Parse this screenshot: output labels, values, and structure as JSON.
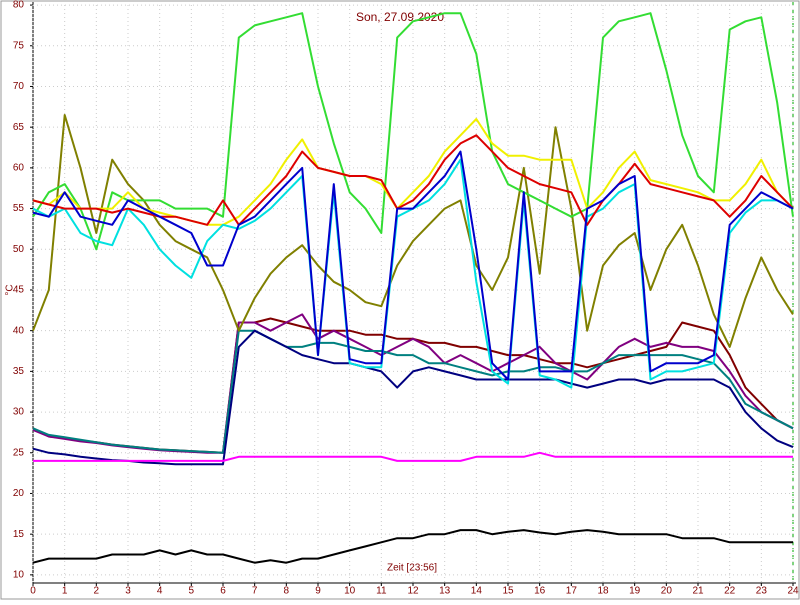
{
  "chart_data": {
    "type": "line",
    "title": "Son, 27.09.2020",
    "ylabel": "°C",
    "annotation": "Zeit [23:56]",
    "x": [
      0,
      0.5,
      1,
      1.5,
      2,
      2.5,
      3,
      3.5,
      4,
      4.5,
      5,
      5.5,
      6,
      6.5,
      7,
      7.5,
      8,
      8.5,
      9,
      9.5,
      10,
      10.5,
      11,
      11.5,
      12,
      12.5,
      13,
      13.5,
      14,
      14.5,
      15,
      15.5,
      16,
      16.5,
      17,
      17.5,
      18,
      18.5,
      19,
      19.5,
      20,
      20.5,
      21,
      21.5,
      22,
      22.5,
      23,
      23.5,
      24
    ],
    "xlim": [
      0,
      24
    ],
    "xticks": [
      0,
      1,
      2,
      3,
      4,
      5,
      6,
      7,
      8,
      9,
      10,
      11,
      12,
      13,
      14,
      15,
      16,
      17,
      18,
      19,
      20,
      21,
      22,
      23,
      24
    ],
    "ylim": [
      9,
      80.5
    ],
    "yticks": [
      10,
      15,
      20,
      25,
      30,
      35,
      40,
      45,
      50,
      55,
      60,
      65,
      70,
      75,
      80
    ],
    "grid": true,
    "series": [
      {
        "color": "#800000",
        "values": [
          28,
          27,
          26.8,
          26.5,
          26.3,
          26,
          25.8,
          25.6,
          25.4,
          25.3,
          25.2,
          25.1,
          25,
          41,
          41,
          41.5,
          41,
          40.5,
          40,
          40,
          40,
          39.5,
          39.5,
          39,
          39,
          38.5,
          38.5,
          38,
          38,
          37.5,
          37,
          37,
          36.5,
          36,
          36,
          35.5,
          36,
          36.5,
          37,
          37.5,
          38,
          41,
          40.5,
          40,
          37,
          33,
          31,
          29,
          28
        ]
      },
      {
        "color": "#800080",
        "values": [
          27.8,
          27,
          26.7,
          26.4,
          26.2,
          25.9,
          25.7,
          25.5,
          25.3,
          25.2,
          25.1,
          25,
          25,
          41,
          41,
          40,
          41,
          42,
          39,
          40,
          39,
          38,
          37,
          38,
          39,
          38,
          36,
          37,
          36,
          35,
          36,
          37,
          38,
          36,
          35,
          34,
          36,
          38,
          39,
          38,
          38.5,
          38,
          38,
          37.5,
          35,
          32,
          30,
          29,
          28
        ]
      },
      {
        "color": "#008080",
        "values": [
          28,
          27.2,
          26.9,
          26.6,
          26.3,
          26,
          25.8,
          25.6,
          25.4,
          25.3,
          25.2,
          25.1,
          25,
          40,
          40,
          39,
          38,
          38,
          38.5,
          38.5,
          38,
          37.5,
          37.5,
          37,
          37,
          36,
          36,
          35.5,
          35,
          34.5,
          35,
          35,
          35.5,
          35.5,
          35,
          35,
          36,
          37,
          37,
          37,
          37,
          37,
          36.5,
          36,
          34,
          31,
          30,
          29,
          28
        ]
      },
      {
        "color": "#000080",
        "values": [
          25.5,
          25,
          24.8,
          24.5,
          24.3,
          24.1,
          24,
          23.8,
          23.7,
          23.6,
          23.6,
          23.6,
          23.6,
          38,
          40,
          39,
          38,
          37,
          36.5,
          36,
          36,
          35.5,
          35,
          33,
          35,
          35.5,
          35,
          34.5,
          34,
          34,
          34,
          34,
          34,
          34,
          33.5,
          33,
          33.5,
          34,
          34,
          33.5,
          34,
          34,
          34,
          34,
          33,
          30,
          28,
          26.5,
          25.7
        ]
      },
      {
        "color": "#ff00ff",
        "values": [
          24,
          24,
          24,
          24,
          24,
          24,
          24,
          24,
          24,
          24,
          24,
          24,
          24,
          24.5,
          24.5,
          24.5,
          24.5,
          24.5,
          24.5,
          24.5,
          24.5,
          24.5,
          24.5,
          24,
          24,
          24,
          24,
          24,
          24.5,
          24.5,
          24.5,
          24.5,
          25,
          24.5,
          24.5,
          24.5,
          24.5,
          24.5,
          24.5,
          24.5,
          24.5,
          24.5,
          24.5,
          24.5,
          24.5,
          24.5,
          24.5,
          24.5,
          24.5
        ]
      },
      {
        "color": "#000000",
        "values": [
          11.5,
          12,
          12,
          12,
          12,
          12.5,
          12.5,
          12.5,
          13,
          12.5,
          13,
          12.5,
          12.5,
          12,
          11.5,
          11.8,
          11.5,
          12,
          12,
          12.5,
          13,
          13.5,
          14,
          14.5,
          14.5,
          15,
          15,
          15.5,
          15.5,
          15,
          15.3,
          15.5,
          15.2,
          15,
          15.3,
          15.5,
          15.3,
          15,
          15,
          15,
          15,
          14.5,
          14.5,
          14.5,
          14,
          14,
          14,
          14,
          14
        ]
      },
      {
        "color": "#808000",
        "values": [
          40,
          45,
          66.5,
          60,
          52,
          61,
          58,
          56,
          53,
          51,
          50,
          49,
          45,
          40,
          44,
          47,
          49,
          50.5,
          48,
          46,
          45,
          43.5,
          43,
          48,
          51,
          53,
          55,
          56,
          48,
          45,
          49,
          60,
          47,
          65,
          55,
          40,
          48,
          50.5,
          52,
          45,
          50,
          53,
          48,
          42,
          38,
          44,
          49,
          45,
          42
        ]
      },
      {
        "color": "#33dd33",
        "values": [
          54,
          57,
          58,
          55,
          50,
          57,
          56,
          56,
          56,
          55,
          55,
          55,
          54,
          76,
          77.5,
          78,
          78.5,
          79,
          70,
          63,
          57,
          55,
          52,
          76,
          78,
          78.5,
          79,
          79,
          74,
          62,
          58,
          57,
          56,
          55,
          54,
          55,
          76,
          78,
          78.5,
          79,
          72,
          64,
          59,
          57,
          77,
          78,
          78.5,
          68,
          54
        ]
      },
      {
        "color": "#f0f000",
        "values": [
          56,
          55.5,
          57,
          55,
          55,
          55,
          57,
          55,
          54.5,
          54,
          53.5,
          53,
          53,
          54,
          56,
          58,
          61,
          63.5,
          60,
          59.5,
          59,
          59,
          58,
          55,
          57,
          59,
          62,
          64,
          66,
          63,
          61.5,
          61.5,
          61,
          61,
          61,
          55,
          57,
          60,
          62,
          58.5,
          58,
          57.5,
          57,
          56,
          56,
          58,
          61,
          57,
          55
        ]
      },
      {
        "color": "#00e0e0",
        "values": [
          55,
          54,
          55,
          52,
          51,
          50.5,
          55,
          53,
          50,
          48,
          46.5,
          51,
          53,
          52.5,
          53.5,
          55,
          57,
          59,
          37,
          57,
          36,
          35.5,
          35.5,
          54,
          55,
          56,
          58,
          61,
          46,
          35,
          33.5,
          56,
          34.5,
          34,
          33,
          54,
          55,
          57,
          58,
          34,
          35,
          35,
          35.5,
          36,
          52,
          54.5,
          56,
          56,
          55
        ]
      },
      {
        "color": "#dd0000",
        "values": [
          56,
          55.5,
          55,
          55,
          55,
          54.5,
          55,
          54.5,
          54,
          54,
          53.5,
          53,
          56,
          53,
          55,
          57,
          59,
          62,
          60,
          59.5,
          59,
          59,
          58.5,
          55,
          56,
          58,
          61,
          63,
          64,
          62,
          60,
          59,
          58,
          57.5,
          57,
          53,
          56,
          58,
          60.5,
          58,
          57.5,
          57,
          56.5,
          56,
          54,
          56,
          59,
          57,
          55
        ]
      },
      {
        "color": "#0000cc",
        "values": [
          54.5,
          54,
          57,
          54,
          53.5,
          53,
          56,
          55,
          54,
          53,
          52,
          48,
          48,
          53,
          54,
          56,
          58,
          60,
          37,
          58,
          36.5,
          36,
          36,
          55,
          55,
          57,
          59,
          62,
          50,
          36,
          34,
          57,
          35,
          35,
          35,
          55,
          56,
          58,
          59,
          35,
          36,
          36,
          36,
          37,
          53,
          55,
          57,
          56,
          55
        ]
      }
    ]
  }
}
